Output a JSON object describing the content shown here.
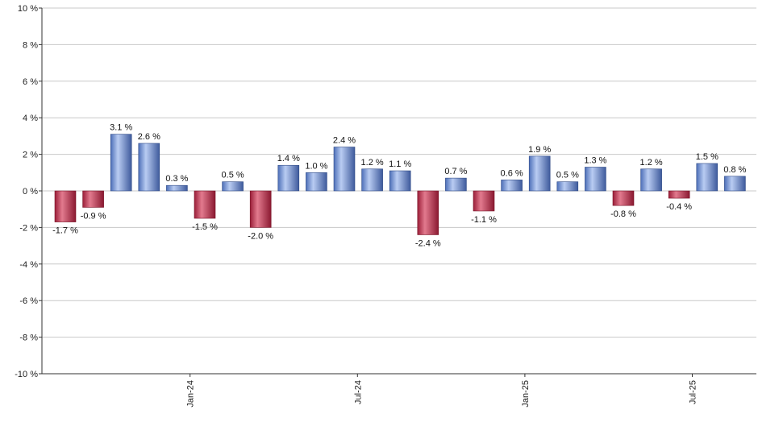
{
  "chart_data": {
    "type": "bar",
    "ylim": [
      -10,
      10
    ],
    "y_ticks": [
      10,
      8,
      6,
      4,
      2,
      0,
      -2,
      -4,
      -6,
      -8,
      -10
    ],
    "y_tick_labels": [
      "10 %",
      "8 %",
      "6 %",
      "4 %",
      "2 %",
      "0 %",
      "-2 %",
      "-4 %",
      "-6 %",
      "-8 %",
      "-10 %"
    ],
    "grid": true,
    "x_tick_labels": [
      {
        "label": "Jan-24",
        "index": 4
      },
      {
        "label": "Jul-24",
        "index": 10
      },
      {
        "label": "Jan-25",
        "index": 16
      },
      {
        "label": "Jul-25",
        "index": 22
      }
    ],
    "values": [
      -1.7,
      -0.9,
      3.1,
      2.6,
      0.3,
      -1.5,
      0.5,
      -2.0,
      1.4,
      1.0,
      2.4,
      1.2,
      1.1,
      -2.4,
      0.7,
      -1.1,
      0.6,
      1.9,
      0.5,
      1.3,
      -0.8,
      1.2,
      -0.4,
      1.5,
      0.8
    ],
    "data_labels": [
      "-1.7 %",
      "-0.9 %",
      "3.1 %",
      "2.6 %",
      "0.3 %",
      "-1.5 %",
      "0.5 %",
      "-2.0 %",
      "1.4 %",
      "1.0 %",
      "2.4 %",
      "1.2 %",
      "1.1 %",
      "-2.4 %",
      "0.7 %",
      "-1.1 %",
      "0.6 %",
      "1.9 %",
      "0.5 %",
      "1.3 %",
      "-0.8 %",
      "1.2 %",
      "-0.4 %",
      "1.5 %",
      "0.8 %"
    ],
    "colors": {
      "positive": "#7c9ad8",
      "negative": "#c23a55",
      "grid": "#c8c8c8",
      "axis": "#333333"
    }
  }
}
